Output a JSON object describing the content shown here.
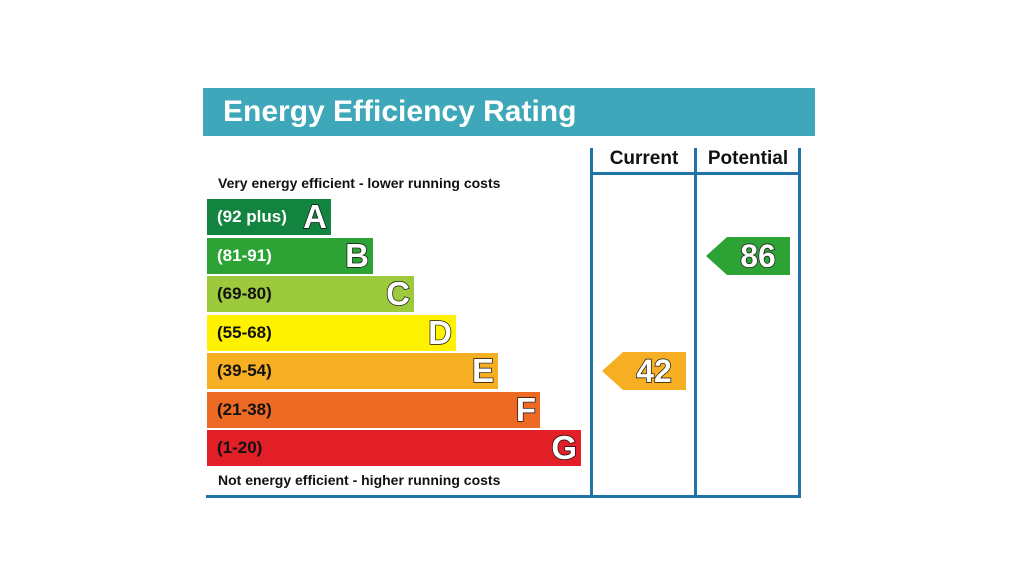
{
  "title": "Energy Efficiency Rating",
  "columns": {
    "current": "Current",
    "potential": "Potential"
  },
  "top_caption": "Very energy efficient - lower running costs",
  "bottom_caption": "Not energy efficient - higher running costs",
  "bands": [
    {
      "range": "(92 plus)",
      "letter": "A",
      "color": "#13843f",
      "text_color": "#ffffff"
    },
    {
      "range": "(81-91)",
      "letter": "B",
      "color": "#2da336",
      "text_color": "#ffffff"
    },
    {
      "range": "(69-80)",
      "letter": "C",
      "color": "#9dca3c",
      "text_color": "#111111"
    },
    {
      "range": "(55-68)",
      "letter": "D",
      "color": "#fff200",
      "text_color": "#111111"
    },
    {
      "range": "(39-54)",
      "letter": "E",
      "color": "#f6ae23",
      "text_color": "#111111"
    },
    {
      "range": "(21-38)",
      "letter": "F",
      "color": "#ed6a25",
      "text_color": "#111111"
    },
    {
      "range": "(1-20)",
      "letter": "G",
      "color": "#e21e26",
      "text_color": "#111111"
    }
  ],
  "current_rating": {
    "value": "42",
    "band": "E",
    "color": "#f6ae23"
  },
  "potential_rating": {
    "value": "86",
    "band": "B",
    "color": "#2da336"
  }
}
